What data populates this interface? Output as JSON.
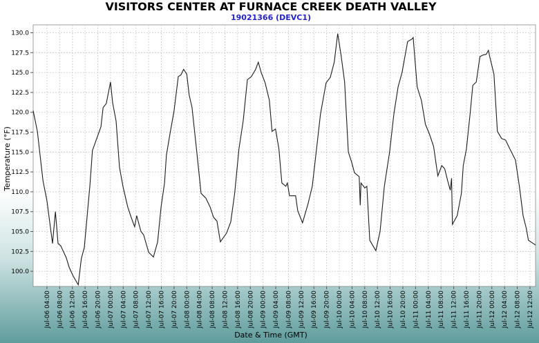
{
  "chart_data": {
    "type": "line",
    "title": "VISITORS CENTER AT FURNACE CREEK DEATH VALLEY",
    "subtitle": "19021366 (DEVC1)",
    "x_label": "Date & Time (GMT)",
    "y_label": "Temperature (°F)",
    "color": "#1a1a1a",
    "grid": true,
    "xlim": [
      "Jul-05 23:40",
      "Jul-12 13:45"
    ],
    "ylim": [
      98.1,
      131
    ],
    "yticks": [
      {
        "value": 100,
        "label": "100.0"
      },
      {
        "value": 102.5,
        "label": "102.5"
      },
      {
        "value": 105,
        "label": "105.0"
      },
      {
        "value": 107.5,
        "label": "107.5"
      },
      {
        "value": 110,
        "label": "110.0"
      },
      {
        "value": 112.5,
        "label": "112.5"
      },
      {
        "value": 115,
        "label": "115.0"
      },
      {
        "value": 117.5,
        "label": "117.5"
      },
      {
        "value": 120,
        "label": "120.0"
      },
      {
        "value": 122.5,
        "label": "122.5"
      },
      {
        "value": 125,
        "label": "125.0"
      },
      {
        "value": 127.5,
        "label": "127.5"
      },
      {
        "value": 130,
        "label": "130.0"
      }
    ],
    "xticks": [
      "Jul-06 04:00",
      "Jul-06 08:00",
      "Jul-06 12:00",
      "Jul-06 16:00",
      "Jul-06 20:00",
      "Jul-07 00:00",
      "Jul-07 04:00",
      "Jul-07 08:00",
      "Jul-07 12:00",
      "Jul-07 16:00",
      "Jul-07 20:00",
      "Jul-08 00:00",
      "Jul-08 04:00",
      "Jul-08 08:00",
      "Jul-08 12:00",
      "Jul-08 16:00",
      "Jul-08 20:00",
      "Jul-09 00:00",
      "Jul-09 04:00",
      "Jul-09 08:00",
      "Jul-09 12:00",
      "Jul-09 16:00",
      "Jul-09 20:00",
      "Jul-10 00:00",
      "Jul-10 04:00",
      "Jul-10 08:00",
      "Jul-10 12:00",
      "Jul-10 16:00",
      "Jul-10 20:00",
      "Jul-11 00:00",
      "Jul-11 04:00",
      "Jul-11 08:00",
      "Jul-11 12:00",
      "Jul-11 16:00",
      "Jul-11 20:00",
      "Jul-12 00:00",
      "Jul-12 04:00",
      "Jul-12 08:00",
      "Jul-12 12:00"
    ],
    "x": [
      "Jul-05 23:40",
      "Jul-06 01:00",
      "Jul-06 02:45",
      "Jul-06 04:00",
      "Jul-06 05:45",
      "Jul-06 06:40",
      "Jul-06 07:30",
      "Jul-06 08:20",
      "Jul-06 10:05",
      "Jul-06 11:00",
      "Jul-06 12:15",
      "Jul-06 13:50",
      "Jul-06 14:50",
      "Jul-06 15:45",
      "Jul-06 17:30",
      "Jul-06 18:20",
      "Jul-06 19:40",
      "Jul-06 21:00",
      "Jul-06 21:40",
      "Jul-06 22:40",
      "Jul-07 00:00",
      "Jul-07 00:40",
      "Jul-07 01:45",
      "Jul-07 02:50",
      "Jul-07 03:55",
      "Jul-07 05:25",
      "Jul-07 06:30",
      "Jul-07 07:35",
      "Jul-07 08:15",
      "Jul-07 09:35",
      "Jul-07 10:25",
      "Jul-07 12:00",
      "Jul-07 13:30",
      "Jul-07 14:50",
      "Jul-07 15:55",
      "Jul-07 17:00",
      "Jul-07 17:35",
      "Jul-07 18:40",
      "Jul-07 20:00",
      "Jul-07 21:20",
      "Jul-07 22:10",
      "Jul-07 23:00",
      "Jul-08 00:00",
      "Jul-08 00:45",
      "Jul-08 01:40",
      "Jul-08 02:55",
      "Jul-08 04:30",
      "Jul-08 06:00",
      "Jul-08 07:20",
      "Jul-08 08:25",
      "Jul-08 09:30",
      "Jul-08 10:35",
      "Jul-08 12:30",
      "Jul-08 13:50",
      "Jul-08 15:05",
      "Jul-08 16:25",
      "Jul-08 17:45",
      "Jul-08 19:05",
      "Jul-08 20:20",
      "Jul-08 21:40",
      "Jul-08 22:30",
      "Jul-08 23:25",
      "Jul-09 00:40",
      "Jul-09 02:00",
      "Jul-09 02:50",
      "Jul-09 03:55",
      "Jul-09 05:00",
      "Jul-09 05:55",
      "Jul-09 07:10",
      "Jul-09 07:40",
      "Jul-09 08:20",
      "Jul-09 10:15",
      "Jul-09 10:55",
      "Jul-09 12:25",
      "Jul-09 14:10",
      "Jul-09 15:30",
      "Jul-09 16:50",
      "Jul-09 18:05",
      "Jul-09 19:50",
      "Jul-09 21:10",
      "Jul-09 22:25",
      "Jul-09 23:30",
      "Jul-10 00:35",
      "Jul-10 01:40",
      "Jul-10 02:50",
      "Jul-10 03:55",
      "Jul-10 04:45",
      "Jul-10 06:15",
      "Jul-10 06:35",
      "Jul-10 06:50",
      "Jul-10 08:00",
      "Jul-10 08:40",
      "Jul-10 09:35",
      "Jul-10 11:30",
      "Jul-10 12:50",
      "Jul-10 14:10",
      "Jul-10 15:50",
      "Jul-10 17:10",
      "Jul-10 18:30",
      "Jul-10 19:45",
      "Jul-10 21:30",
      "Jul-10 22:50",
      "Jul-10 23:15",
      "Jul-11 00:30",
      "Jul-11 01:50",
      "Jul-11 03:05",
      "Jul-11 04:25",
      "Jul-11 05:40",
      "Jul-11 07:00",
      "Jul-11 08:15",
      "Jul-11 09:10",
      "Jul-11 10:05",
      "Jul-11 10:55",
      "Jul-11 11:20",
      "Jul-11 11:35",
      "Jul-11 13:05",
      "Jul-11 14:25",
      "Jul-11 15:00",
      "Jul-11 16:00",
      "Jul-11 17:10",
      "Jul-11 18:00",
      "Jul-11 19:05",
      "Jul-11 20:15",
      "Jul-11 21:10",
      "Jul-11 22:15",
      "Jul-11 22:55",
      "Jul-11 23:20",
      "Jul-12 00:40",
      "Jul-12 01:45",
      "Jul-12 03:05",
      "Jul-12 04:20",
      "Jul-12 05:40",
      "Jul-12 07:25",
      "Jul-12 08:40",
      "Jul-12 09:50",
      "Jul-12 10:50",
      "Jul-12 11:30",
      "Jul-12 13:45"
    ],
    "values": [
      120.2,
      117.6,
      111.4,
      108.9,
      103.5,
      107.5,
      103.5,
      103.2,
      101.7,
      100.5,
      99.4,
      98.3,
      101.6,
      103.0,
      110.7,
      115.2,
      116.7,
      118.2,
      120.6,
      121.1,
      123.8,
      121.2,
      118.9,
      113.1,
      110.7,
      108.1,
      106.8,
      105.6,
      107.0,
      105.0,
      104.6,
      102.4,
      101.8,
      103.7,
      108.1,
      111.1,
      114.6,
      117.2,
      120.2,
      124.5,
      124.7,
      125.4,
      124.8,
      122.2,
      120.6,
      115.9,
      109.8,
      109.2,
      108.1,
      106.8,
      106.3,
      103.7,
      104.8,
      106.2,
      109.8,
      115.4,
      118.9,
      124.1,
      124.5,
      125.4,
      126.3,
      125.0,
      123.7,
      121.5,
      117.6,
      117.9,
      115.4,
      111.1,
      110.7,
      111.1,
      109.5,
      109.5,
      107.6,
      106.1,
      108.5,
      110.7,
      115.4,
      119.8,
      123.7,
      124.4,
      126.3,
      129.9,
      127.1,
      123.8,
      115.0,
      113.7,
      112.4,
      111.9,
      108.3,
      111.1,
      110.5,
      110.7,
      103.9,
      102.6,
      105.0,
      110.7,
      115.0,
      119.8,
      123.2,
      125.0,
      128.9,
      129.2,
      129.4,
      123.2,
      121.5,
      118.5,
      117.2,
      115.7,
      112.0,
      113.3,
      112.9,
      111.4,
      110.2,
      111.7,
      105.9,
      107.0,
      109.8,
      113.3,
      115.4,
      119.8,
      123.4,
      123.8,
      127.0,
      127.2,
      127.3,
      127.8,
      127.0,
      124.8,
      117.6,
      116.7,
      116.5,
      115.4,
      114.0,
      110.7,
      107.0,
      105.4,
      103.9,
      103.3
    ]
  }
}
